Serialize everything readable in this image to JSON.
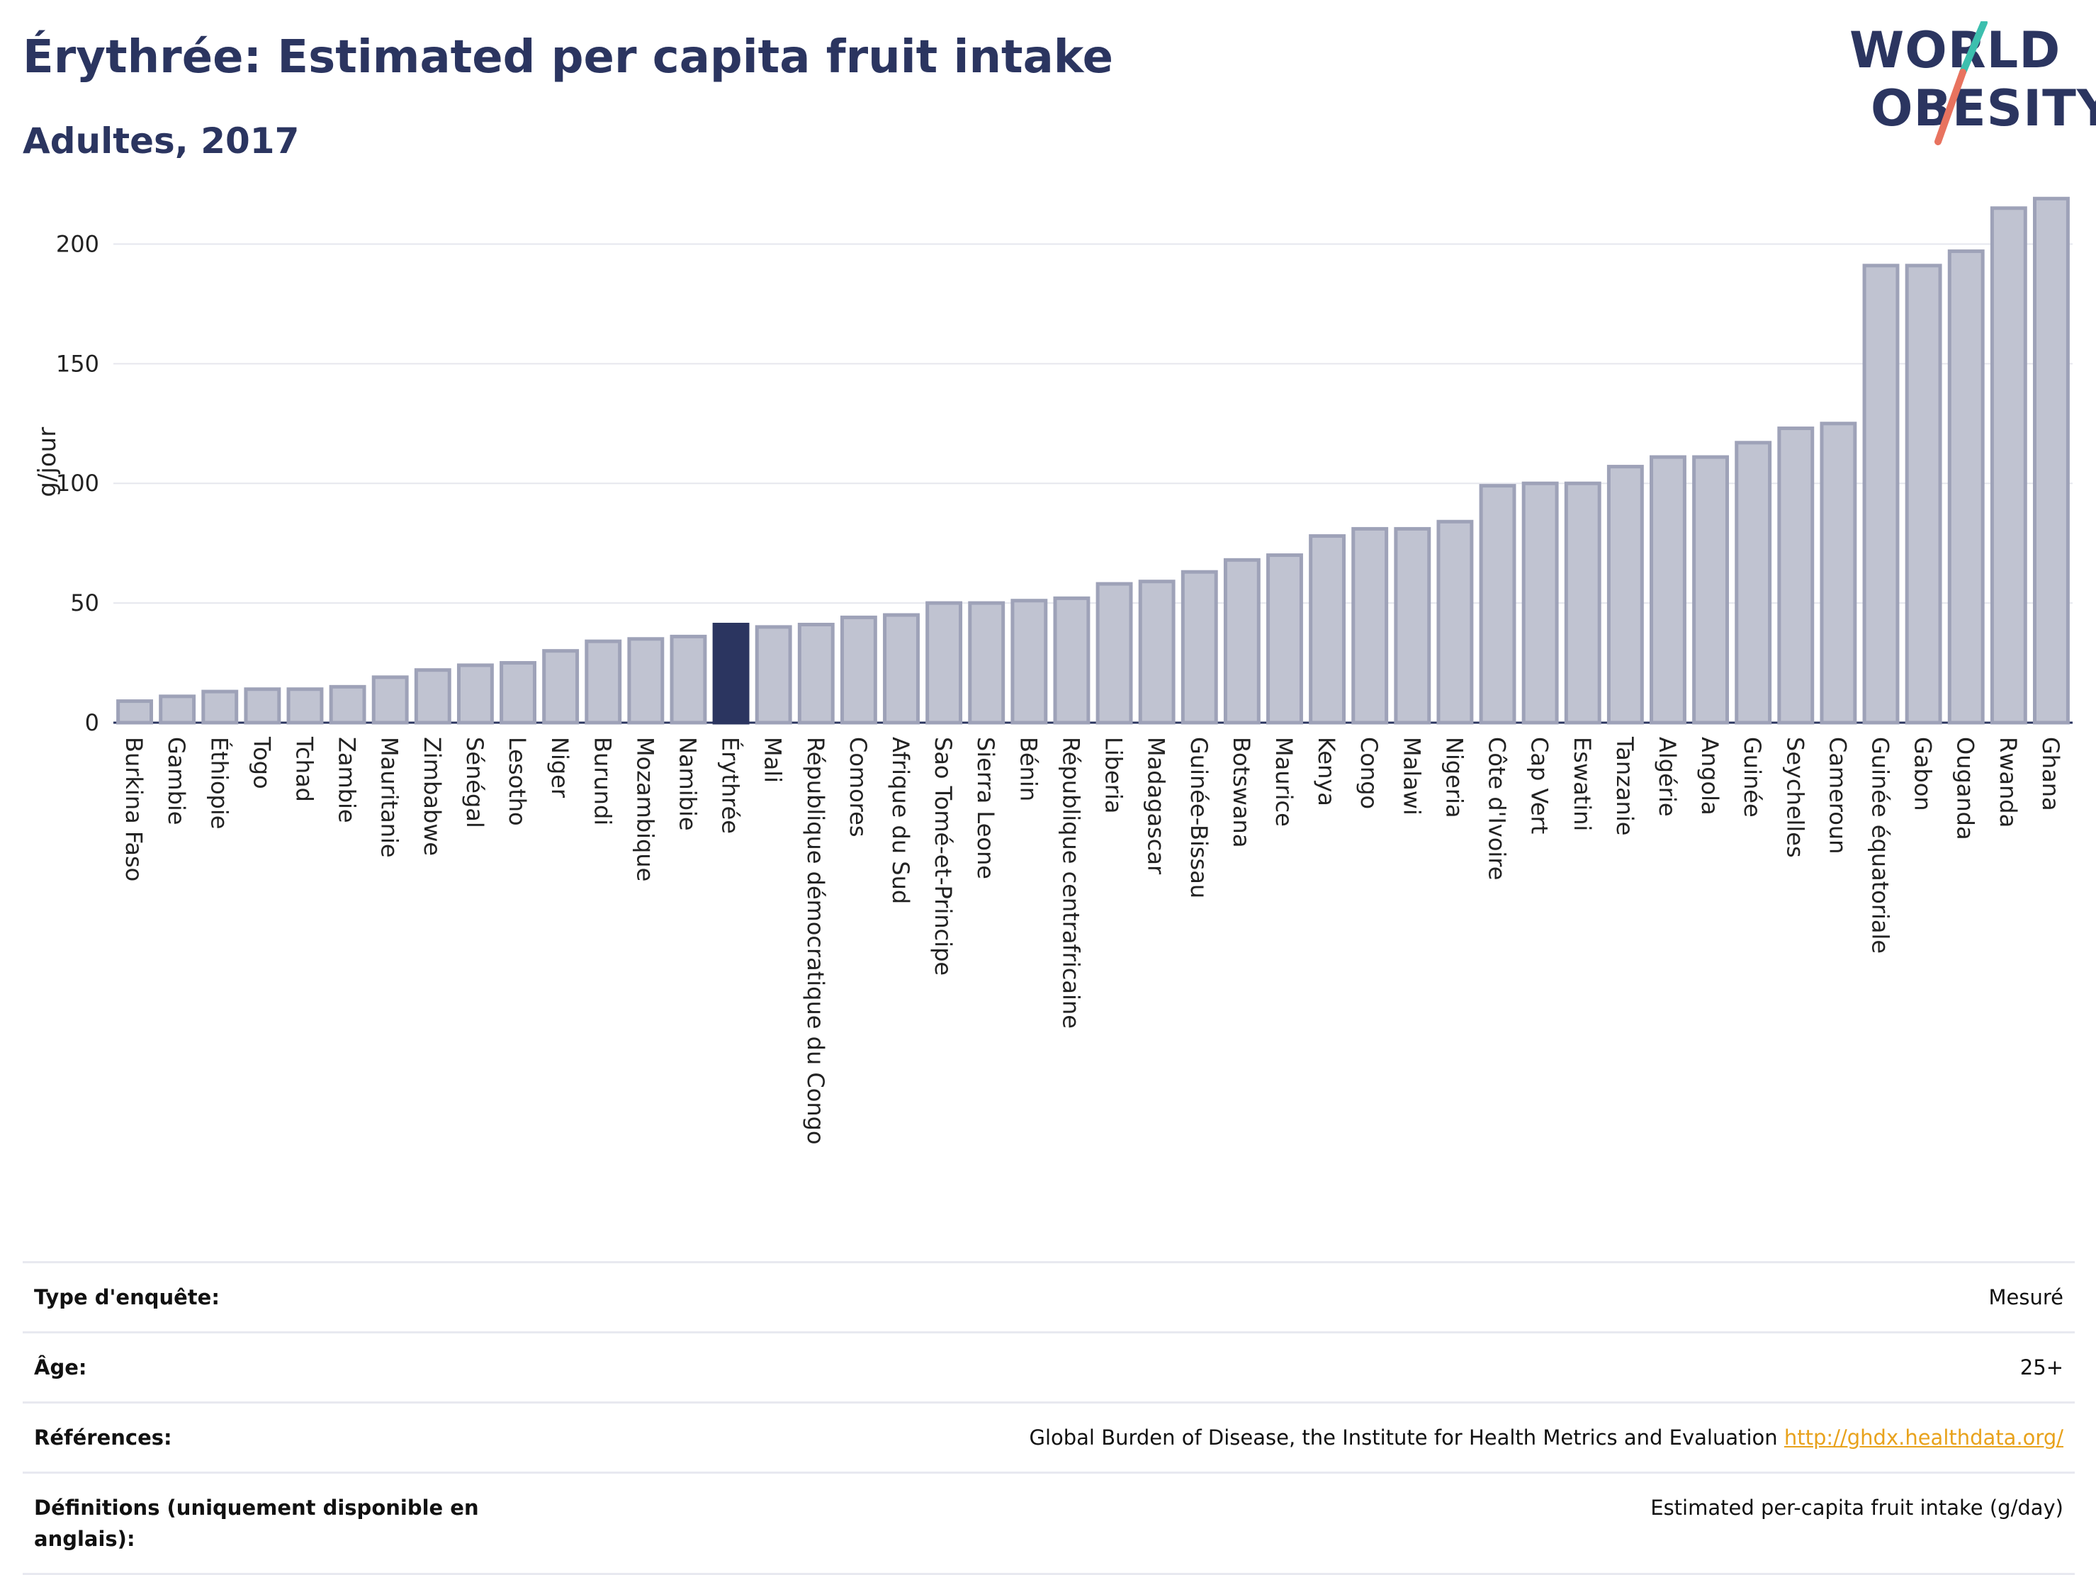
{
  "header": {
    "title": "Érythrée: Estimated per capita fruit intake",
    "subtitle": "Adultes, 2017",
    "logo_line1": "WORLD",
    "logo_line2": "OBESITY"
  },
  "colors": {
    "highlight": "#2b3560",
    "bar_fill": "#c0c3d1",
    "bar_stroke": "#9ea2b8",
    "text": "#2b3560",
    "link": "#e8a21c",
    "logo_slash_teal": "#3cbfae",
    "logo_slash_coral": "#e8735f"
  },
  "chart_data": {
    "type": "bar",
    "title": "Érythrée: Estimated per capita fruit intake",
    "subtitle": "Adultes, 2017",
    "xlabel": "",
    "ylabel": "g/jour",
    "ylim": [
      0,
      225
    ],
    "yticks": [
      0,
      50,
      100,
      150,
      200
    ],
    "grid": true,
    "highlight_category": "Érythrée",
    "categories": [
      "Burkina Faso",
      "Gambie",
      "Éthiopie",
      "Togo",
      "Tchad",
      "Zambie",
      "Mauritanie",
      "Zimbabwe",
      "Sénégal",
      "Lesotho",
      "Niger",
      "Burundi",
      "Mozambique",
      "Namibie",
      "Érythrée",
      "Mali",
      "République démocratique du Congo",
      "Comores",
      "Afrique du Sud",
      "Sao Tomé-et-Principe",
      "Sierra Leone",
      "Bénin",
      "République centrafricaine",
      "Liberia",
      "Madagascar",
      "Guinée-Bissau",
      "Botswana",
      "Maurice",
      "Kenya",
      "Congo",
      "Malawi",
      "Nigeria",
      "Côte d'Ivoire",
      "Cap Vert",
      "Eswatini",
      "Tanzanie",
      "Algérie",
      "Angola",
      "Guinée",
      "Seychelles",
      "Cameroun",
      "Guinée équatoriale",
      "Gabon",
      "Ouganda",
      "Rwanda",
      "Ghana"
    ],
    "values": [
      9,
      11,
      13,
      14,
      14,
      15,
      19,
      22,
      24,
      25,
      30,
      34,
      35,
      36,
      41,
      40,
      41,
      44,
      45,
      50,
      50,
      51,
      52,
      58,
      59,
      63,
      68,
      70,
      78,
      81,
      81,
      84,
      99,
      100,
      100,
      107,
      111,
      111,
      117,
      123,
      125,
      191,
      191,
      197,
      215,
      219
    ]
  },
  "info": {
    "rows": [
      {
        "label": "Type d'enquête:",
        "value": "Mesuré"
      },
      {
        "label": "Âge:",
        "value": "25+"
      },
      {
        "label": "Références:",
        "value": "Global Burden of Disease, the Institute for Health Metrics and Evaluation",
        "link": "http://ghdx.healthdata.org/"
      },
      {
        "label": "Définitions (uniquement disponible en anglais):",
        "value": "Estimated per-capita fruit intake (g/day)"
      }
    ]
  }
}
